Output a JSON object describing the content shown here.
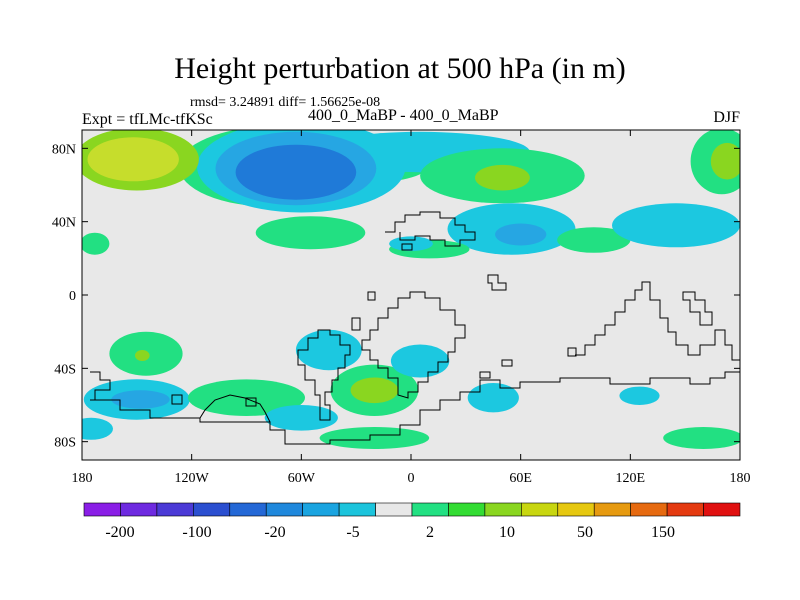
{
  "chart_data": {
    "type": "filled-contour-map",
    "title": "Height perturbation at 500 hPa (in m)",
    "stats_text": "rmsd= 3.24891 diff= 1.56625e-08",
    "left_label": "Expt = tfLMc-tfKSc",
    "center_label": "400_0_MaBP - 400_0_MaBP",
    "right_label": "DJF",
    "x_axis": {
      "range": [
        -180,
        180
      ],
      "ticks": [
        -180,
        -120,
        -60,
        0,
        60,
        120,
        180
      ],
      "tick_labels": [
        "180",
        "120W",
        "60W",
        "0",
        "60E",
        "120E",
        "180"
      ]
    },
    "y_axis": {
      "range": [
        -90,
        90
      ],
      "ticks": [
        80,
        40,
        0,
        -40,
        -80
      ],
      "tick_labels": [
        "80N",
        "40N",
        "0",
        "40S",
        "80S"
      ]
    },
    "colorbar": {
      "colors": [
        "#8a1ee6",
        "#6e2ae0",
        "#4b3ad6",
        "#2b4fd0",
        "#2468d6",
        "#1f88dc",
        "#1aa4e0",
        "#1cc4dc",
        "#e8e8e8",
        "#22e082",
        "#33dc33",
        "#8ad620",
        "#c8d610",
        "#e6c810",
        "#e69a10",
        "#e66a10",
        "#e43a10",
        "#e01010"
      ],
      "labels": [
        "-200",
        "-100",
        "-20",
        "-5",
        "2",
        "10",
        "50",
        "150"
      ]
    },
    "field_features": [
      {
        "level": 2,
        "lon": -150,
        "lat": 74,
        "rx": 34,
        "ry": 17
      },
      {
        "level": 3,
        "lon": -152,
        "lat": 74,
        "rx": 25,
        "ry": 12
      },
      {
        "level": 1,
        "lon": -75,
        "lat": 70,
        "rx": 52,
        "ry": 22
      },
      {
        "level": 1,
        "lon": -15,
        "lat": 75,
        "rx": 28,
        "ry": 13
      },
      {
        "level": -1,
        "lon": -60,
        "lat": 70,
        "rx": 57,
        "ry": 25
      },
      {
        "level": -1,
        "lon": 5,
        "lat": 78,
        "rx": 60,
        "ry": 11
      },
      {
        "level": -2,
        "lon": -63,
        "lat": 69,
        "rx": 44,
        "ry": 20
      },
      {
        "level": -3,
        "lon": -63,
        "lat": 67,
        "rx": 33,
        "ry": 15
      },
      {
        "level": 1,
        "lon": 50,
        "lat": 65,
        "rx": 45,
        "ry": 15
      },
      {
        "level": 2,
        "lon": 50,
        "lat": 64,
        "rx": 15,
        "ry": 7
      },
      {
        "level": 1,
        "lon": 170,
        "lat": 73,
        "rx": 17,
        "ry": 18
      },
      {
        "level": 2,
        "lon": 173,
        "lat": 73,
        "rx": 9,
        "ry": 10
      },
      {
        "level": 1,
        "lon": -55,
        "lat": 34,
        "rx": 30,
        "ry": 9
      },
      {
        "level": -1,
        "lon": 55,
        "lat": 36,
        "rx": 35,
        "ry": 14
      },
      {
        "level": -2,
        "lon": 60,
        "lat": 33,
        "rx": 14,
        "ry": 6
      },
      {
        "level": 1,
        "lon": 100,
        "lat": 30,
        "rx": 20,
        "ry": 7
      },
      {
        "level": -1,
        "lon": 145,
        "lat": 38,
        "rx": 35,
        "ry": 12
      },
      {
        "level": 1,
        "lon": 10,
        "lat": 25,
        "rx": 22,
        "ry": 5
      },
      {
        "level": -1,
        "lon": 0,
        "lat": 28,
        "rx": 12,
        "ry": 4
      },
      {
        "level": 1,
        "lon": -173,
        "lat": 28,
        "rx": 8,
        "ry": 6
      },
      {
        "level": 1,
        "lon": -145,
        "lat": -32,
        "rx": 20,
        "ry": 12
      },
      {
        "level": 2,
        "lon": -147,
        "lat": -33,
        "rx": 4,
        "ry": 3
      },
      {
        "level": -1,
        "lon": -150,
        "lat": -57,
        "rx": 29,
        "ry": 11
      },
      {
        "level": -2,
        "lon": -148,
        "lat": -57,
        "rx": 16,
        "ry": 5
      },
      {
        "level": 1,
        "lon": -90,
        "lat": -56,
        "rx": 32,
        "ry": 10
      },
      {
        "level": -1,
        "lon": -45,
        "lat": -30,
        "rx": 18,
        "ry": 11
      },
      {
        "level": 1,
        "lon": -20,
        "lat": -52,
        "rx": 24,
        "ry": 14
      },
      {
        "level": 2,
        "lon": -20,
        "lat": -52,
        "rx": 13,
        "ry": 7
      },
      {
        "level": -1,
        "lon": -60,
        "lat": -67,
        "rx": 20,
        "ry": 7
      },
      {
        "level": -1,
        "lon": 5,
        "lat": -36,
        "rx": 16,
        "ry": 9
      },
      {
        "level": -1,
        "lon": 45,
        "lat": -56,
        "rx": 14,
        "ry": 8
      },
      {
        "level": -1,
        "lon": 125,
        "lat": -55,
        "rx": 11,
        "ry": 5
      },
      {
        "level": 1,
        "lon": -20,
        "lat": -78,
        "rx": 30,
        "ry": 6
      },
      {
        "level": 1,
        "lon": 160,
        "lat": -78,
        "rx": 22,
        "ry": 6
      },
      {
        "level": -1,
        "lon": -175,
        "lat": -73,
        "rx": 12,
        "ry": 6
      }
    ]
  }
}
